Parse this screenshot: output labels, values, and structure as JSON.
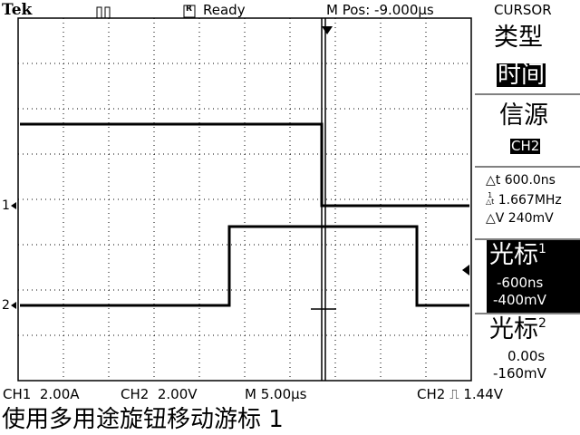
{
  "header": {
    "brand": "Tek",
    "status": "Ready",
    "position": "M Pos: -9.000µs",
    "menu_title": "CURSOR"
  },
  "menu": {
    "type_label": "类型",
    "type_value": "时间",
    "source_label": "信源",
    "source_value": "CH2",
    "delta_t": "600.0ns",
    "inv_delta_t": "1.667MHz",
    "delta_v": "240mV",
    "cursor1": {
      "label": "光标",
      "index": "1",
      "time": "-600ns",
      "volt": "-400mV"
    },
    "cursor2": {
      "label": "光标",
      "index": "2",
      "time": "0.00s",
      "volt": "-160mV"
    }
  },
  "channels": {
    "ch1_marker": "1",
    "ch2_marker": "2"
  },
  "footer": {
    "ch1": "CH1  2.00A",
    "ch2": "CH2  2.00V",
    "timebase": "M 5.00µs",
    "trigger": "CH2",
    "trigger_level": "1.44V",
    "message": "使用多用途旋钮移动游标 1"
  }
}
